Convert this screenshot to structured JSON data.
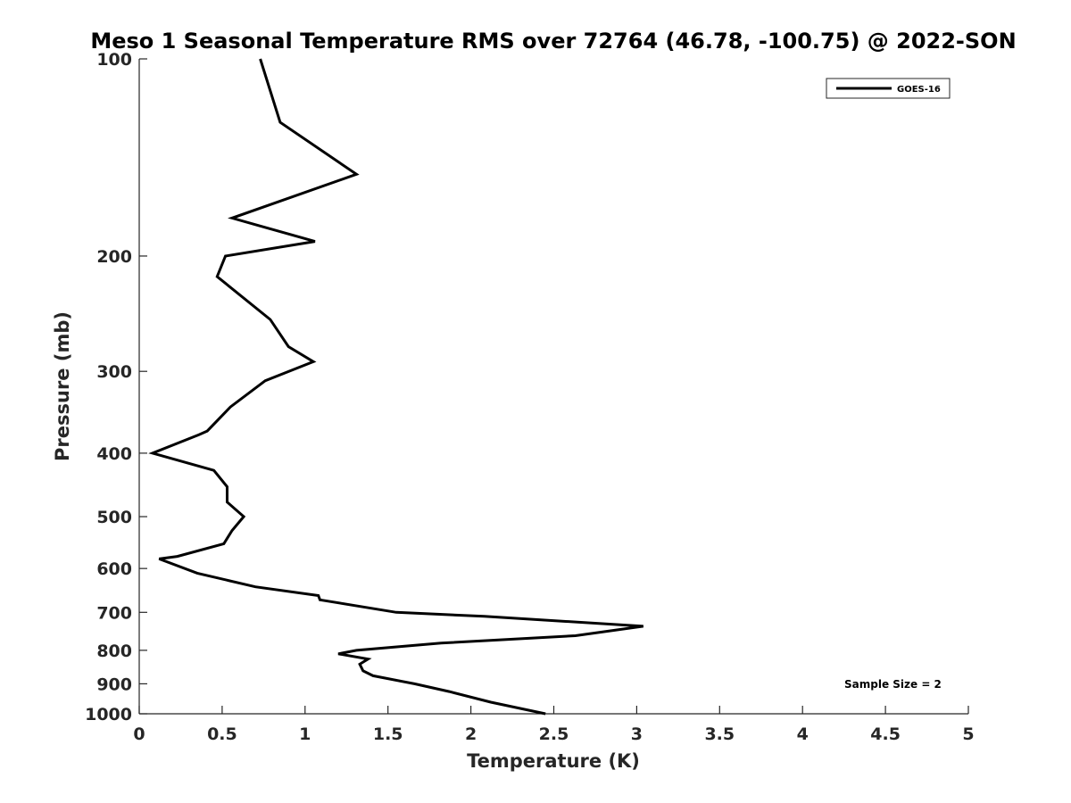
{
  "chart_data": {
    "type": "line",
    "title": "Meso 1 Seasonal Temperature RMS over 72764 (46.78, -100.75) @ 2022-SON",
    "xlabel": "Temperature (K)",
    "ylabel": "Pressure (mb)",
    "xlim": [
      0,
      5
    ],
    "ylim": [
      100,
      1000
    ],
    "yscale": "log",
    "yreversed": true,
    "x_ticks": [
      0,
      0.5,
      1,
      1.5,
      2,
      2.5,
      3,
      3.5,
      4,
      4.5,
      5
    ],
    "x_tick_labels": [
      "0",
      "0.5",
      "1",
      "1.5",
      "2",
      "2.5",
      "3",
      "3.5",
      "4",
      "4.5",
      "5"
    ],
    "y_ticks": [
      100,
      200,
      300,
      400,
      500,
      600,
      700,
      800,
      900,
      1000
    ],
    "y_tick_labels": [
      "100",
      "200",
      "300",
      "400",
      "500",
      "600",
      "700",
      "800",
      "900",
      "1000"
    ],
    "grid": false,
    "legend_position": "top-right",
    "series": [
      {
        "name": "GOES-16",
        "color": "#000000",
        "temperature": [
          0.73,
          0.85,
          1.31,
          0.56,
          1.06,
          0.52,
          0.47,
          0.79,
          0.9,
          1.05,
          0.76,
          0.55,
          0.41,
          0.36,
          0.08,
          0.45,
          0.53,
          0.53,
          0.63,
          0.56,
          0.51,
          0.23,
          0.12,
          0.35,
          0.7,
          1.08,
          1.09,
          1.55,
          2.08,
          3.04,
          2.63,
          1.82,
          1.31,
          1.2,
          1.38,
          1.33,
          1.35,
          1.41,
          1.66,
          1.87,
          2.12,
          2.45
        ],
        "pressure": [
          100,
          125,
          150,
          175,
          190,
          200,
          215,
          250,
          275,
          290,
          310,
          340,
          370,
          375,
          400,
          425,
          450,
          475,
          500,
          525,
          550,
          575,
          580,
          610,
          640,
          660,
          670,
          700,
          710,
          735,
          760,
          780,
          800,
          810,
          825,
          840,
          860,
          875,
          900,
          925,
          960,
          1000
        ]
      }
    ],
    "annotation": "Sample Size = 2"
  }
}
